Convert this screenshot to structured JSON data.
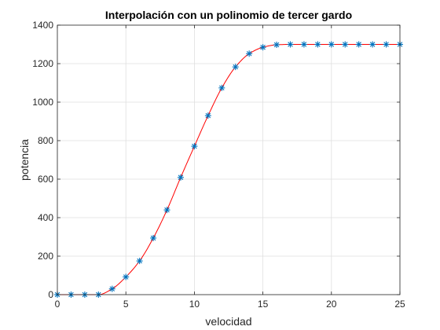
{
  "chart_data": {
    "type": "line",
    "title": "Interpolación con un polinomio de tercer gardo",
    "xlabel": "velocidad",
    "ylabel": "potencia",
    "xlim": [
      0,
      25
    ],
    "ylim": [
      0,
      1400
    ],
    "xticks": [
      0,
      5,
      10,
      15,
      20,
      25
    ],
    "yticks": [
      0,
      200,
      400,
      600,
      800,
      1000,
      1200,
      1400
    ],
    "grid": true,
    "colors": {
      "curve": "#ff0000",
      "markers": "#0072bd",
      "axes": "#262626",
      "grid": "#dfdfdf"
    },
    "series": [
      {
        "marker": "asterisk",
        "x": [
          0,
          1,
          2,
          3,
          4,
          5,
          6,
          7,
          8,
          9,
          10,
          11,
          12,
          13,
          14,
          15,
          16,
          17,
          18,
          19,
          20,
          21,
          22,
          23,
          24,
          25
        ],
        "values": [
          0,
          0,
          0,
          0,
          30,
          92,
          175,
          294,
          440,
          609,
          771,
          930,
          1074,
          1183,
          1252,
          1285,
          1298,
          1300,
          1300,
          1300,
          1300,
          1300,
          1300,
          1300,
          1300,
          1300
        ]
      }
    ]
  }
}
